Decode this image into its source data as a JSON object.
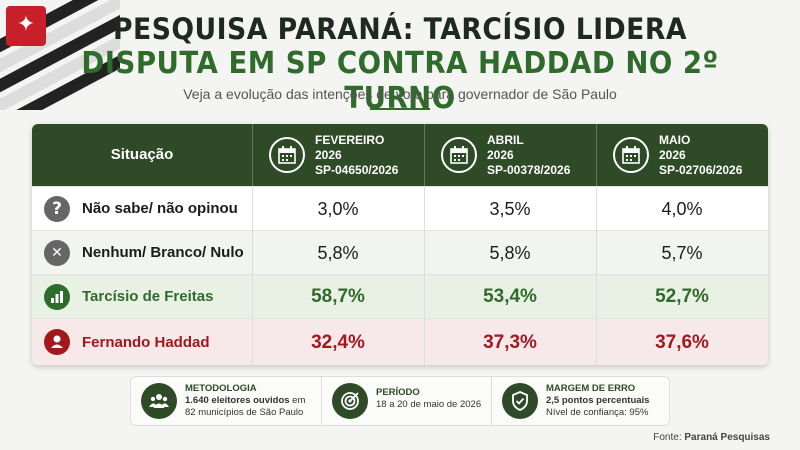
{
  "title_line1": "PESQUISA PARANÁ: TARCÍSIO LIDERA",
  "title_line2": "DISPUTA EM SP CONTRA HADDAD NO 2º TURNO",
  "subtitle": "Veja a evolução das intenções de voto para governador de São Paulo",
  "colors": {
    "header": "#2e4a26",
    "green": "#2f6b2a",
    "red": "#a3181f",
    "gray": "#555555"
  },
  "chart_data": {
    "type": "table",
    "row_header": "Situação",
    "columns": [
      {
        "month": "FEVEREIRO",
        "year": "2026",
        "code": "SP-04650/2026"
      },
      {
        "month": "ABRIL",
        "year": "2026",
        "code": "SP-00378/2026"
      },
      {
        "month": "MAIO",
        "year": "2026",
        "code": "SP-02706/2026"
      }
    ],
    "rows": [
      {
        "label": "Não sabe/ não opinou",
        "icon": "question-icon",
        "icon_glyph": "?",
        "values": [
          "3,0%",
          "3,5%",
          "4,0%"
        ]
      },
      {
        "label": "Nenhum/ Branco/ Nulo",
        "icon": "x-icon",
        "icon_glyph": "✕",
        "values": [
          "5,8%",
          "5,8%",
          "5,7%"
        ]
      },
      {
        "label": "Tarcísio de Freitas",
        "icon": "bar-chart-icon",
        "icon_glyph": "",
        "values": [
          "58,7%",
          "53,4%",
          "52,7%"
        ]
      },
      {
        "label": "Fernando Haddad",
        "icon": "person-icon",
        "icon_glyph": "",
        "values": [
          "32,4%",
          "37,3%",
          "37,6%"
        ]
      }
    ]
  },
  "info": {
    "metodologia": {
      "title": "METODOLOGIA",
      "line1": "1.640 eleitores ouvidos",
      "line1b": " em",
      "line2": "82 municípios de São Paulo"
    },
    "periodo": {
      "title": "PERÍODO",
      "line1": "18 a 20 de maio de 2026"
    },
    "margem": {
      "title": "MARGEM DE ERRO",
      "line1": "2,5 pontos percentuais",
      "line2": "Nível de confiança: 95%"
    }
  },
  "source": {
    "label": "Fonte: ",
    "name": "Paraná Pesquisas"
  }
}
